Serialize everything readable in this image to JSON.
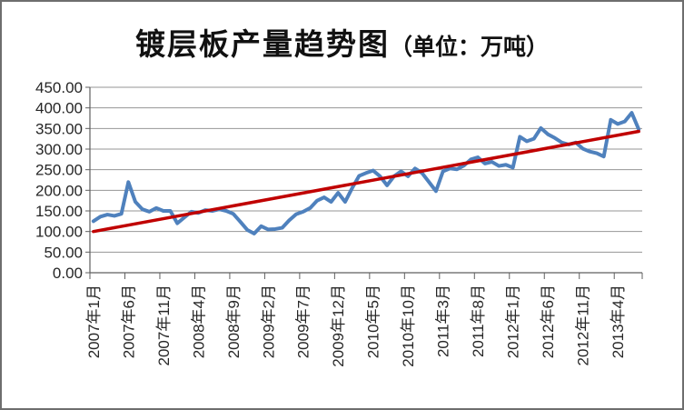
{
  "title": {
    "main": "镀层板产量趋势图",
    "unit": "（单位：万吨）"
  },
  "colors": {
    "series": "#4F81BD",
    "trend": "#C00000",
    "gridline": "#969696",
    "axis": "#5f5f5f",
    "text": "#262626",
    "border": "#6e6e6e",
    "background": "#ffffff"
  },
  "chart_data": {
    "type": "line",
    "title": "镀层板产量趋势图（单位：万吨）",
    "xlabel": "",
    "ylabel": "",
    "unit": "万吨",
    "ylim": [
      0,
      450
    ],
    "y_tick_step": 50,
    "grid": true,
    "legend": "none",
    "y_tick_labels": [
      "0.00",
      "50.00",
      "100.00",
      "150.00",
      "200.00",
      "250.00",
      "300.00",
      "350.00",
      "400.00",
      "450.00"
    ],
    "x_tick_labels": [
      "2007年1月",
      "2007年6月",
      "2007年11月",
      "2008年4月",
      "2008年9月",
      "2009年2月",
      "2009年7月",
      "2009年12月",
      "2010年5月",
      "2010年10月",
      "2011年3月",
      "2011年8月",
      "2012年1月",
      "2012年6月",
      "2012年11月",
      "2013年4月"
    ],
    "x_tick_interval_months": 5,
    "x": [
      "2007-01",
      "2007-02",
      "2007-03",
      "2007-04",
      "2007-05",
      "2007-06",
      "2007-07",
      "2007-08",
      "2007-09",
      "2007-10",
      "2007-11",
      "2007-12",
      "2008-01",
      "2008-02",
      "2008-03",
      "2008-04",
      "2008-05",
      "2008-06",
      "2008-07",
      "2008-08",
      "2008-09",
      "2008-10",
      "2008-11",
      "2008-12",
      "2009-01",
      "2009-02",
      "2009-03",
      "2009-04",
      "2009-05",
      "2009-06",
      "2009-07",
      "2009-08",
      "2009-09",
      "2009-10",
      "2009-11",
      "2009-12",
      "2010-01",
      "2010-02",
      "2010-03",
      "2010-04",
      "2010-05",
      "2010-06",
      "2010-07",
      "2010-08",
      "2010-09",
      "2010-10",
      "2010-11",
      "2010-12",
      "2011-01",
      "2011-02",
      "2011-03",
      "2011-04",
      "2011-05",
      "2011-06",
      "2011-07",
      "2011-08",
      "2011-09",
      "2011-10",
      "2011-11",
      "2011-12",
      "2012-01",
      "2012-02",
      "2012-03",
      "2012-04",
      "2012-05",
      "2012-06",
      "2012-07",
      "2012-08",
      "2012-09",
      "2012-10",
      "2012-11",
      "2012-12",
      "2013-01",
      "2013-02",
      "2013-03",
      "2013-04",
      "2013-05",
      "2013-06",
      "2013-07"
    ],
    "values": [
      125,
      136,
      141,
      138,
      143,
      220,
      172,
      154,
      148,
      157,
      150,
      150,
      120,
      134,
      148,
      145,
      152,
      150,
      154,
      150,
      143,
      124,
      104,
      95,
      113,
      105,
      106,
      109,
      127,
      142,
      148,
      157,
      175,
      183,
      172,
      194,
      172,
      205,
      235,
      242,
      248,
      234,
      212,
      234,
      246,
      234,
      253,
      242,
      220,
      198,
      246,
      253,
      251,
      260,
      275,
      280,
      265,
      269,
      259,
      262,
      255,
      330,
      319,
      325,
      351,
      336,
      327,
      316,
      311,
      316,
      301,
      294,
      290,
      282,
      371,
      361,
      367,
      388,
      348
    ],
    "trend_line": {
      "start_value": 100,
      "end_value": 343
    }
  }
}
